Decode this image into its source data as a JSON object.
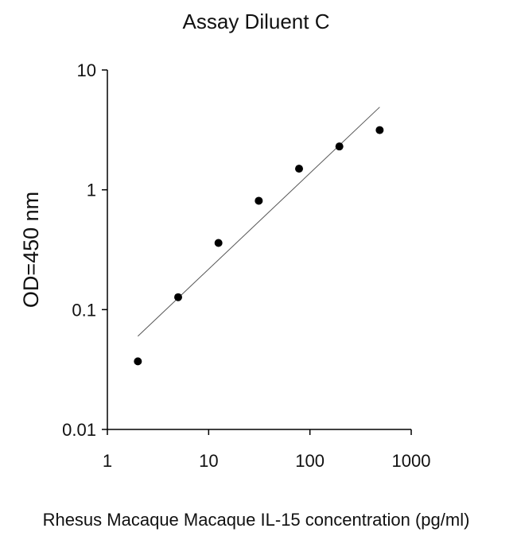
{
  "chart_data": {
    "type": "scatter",
    "title": "Assay Diluent C",
    "xlabel": "Rhesus Macaque Macaque IL-15 concentration (pg/ml)",
    "ylabel": "OD=450 nm",
    "xscale": "log",
    "yscale": "log",
    "xlim": [
      1,
      1000
    ],
    "ylim": [
      0.01,
      10
    ],
    "x_ticks": [
      "1",
      "10",
      "100",
      "1000"
    ],
    "y_ticks": [
      "10",
      "1",
      "0.1",
      "0.01"
    ],
    "grid": false,
    "legend": "none",
    "points": [
      {
        "x": 2,
        "y": 0.037
      },
      {
        "x": 5,
        "y": 0.127
      },
      {
        "x": 12.5,
        "y": 0.36
      },
      {
        "x": 31.25,
        "y": 0.81
      },
      {
        "x": 78.1,
        "y": 1.5
      },
      {
        "x": 195.3,
        "y": 2.3
      },
      {
        "x": 488.3,
        "y": 3.15
      }
    ],
    "fit_line": [
      {
        "x": 2,
        "y": 0.06
      },
      {
        "x": 488.3,
        "y": 4.9
      }
    ],
    "colors": {
      "points": "#000000",
      "line": "#555555",
      "axes": "#000000"
    }
  }
}
